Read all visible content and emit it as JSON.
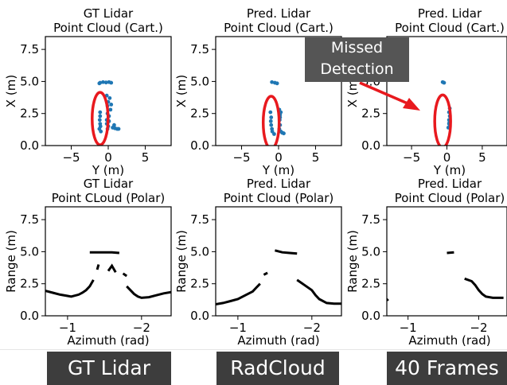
{
  "chart_data": [
    {
      "type": "scatter",
      "title": "GT Lidar\nPoint Cloud (Cart.)",
      "xlabel": "Y (m)",
      "ylabel": "X (m)",
      "xlim": [
        -8.5,
        8.5
      ],
      "ylim": [
        0,
        8.5
      ],
      "xticks": [
        -5,
        0,
        5
      ],
      "yticks": [
        0.0,
        2.5,
        5.0,
        7.5
      ],
      "color": "#1f77b4",
      "points": [
        [
          -1.1,
          4.9
        ],
        [
          -0.7,
          4.95
        ],
        [
          -0.3,
          4.92
        ],
        [
          0.1,
          4.95
        ],
        [
          0.4,
          4.9
        ],
        [
          -1.2,
          4.85
        ],
        [
          -0.2,
          3.9
        ],
        [
          0.2,
          3.7
        ],
        [
          0.0,
          3.4
        ],
        [
          0.4,
          3.2
        ],
        [
          -0.1,
          3.1
        ],
        [
          0.3,
          2.8
        ],
        [
          -0.1,
          2.5
        ],
        [
          0.1,
          2.3
        ],
        [
          -0.2,
          2.0
        ],
        [
          0.1,
          1.9
        ],
        [
          -0.2,
          1.7
        ],
        [
          0.0,
          1.5
        ],
        [
          -0.1,
          1.3
        ],
        [
          0.6,
          1.4
        ],
        [
          0.9,
          1.35
        ],
        [
          1.2,
          1.3
        ],
        [
          1.4,
          1.3
        ],
        [
          0.8,
          1.6
        ],
        [
          -1.1,
          2.6
        ],
        [
          -1.1,
          2.3
        ],
        [
          -1.15,
          2.0
        ],
        [
          -1.1,
          1.7
        ],
        [
          -1.05,
          1.5
        ],
        [
          -1.2,
          1.3
        ],
        [
          -1.0,
          1.1
        ]
      ],
      "highlight": {
        "shape": "ellipse",
        "center": [
          -1.1,
          2.1
        ],
        "color": "#e8191e"
      }
    },
    {
      "type": "scatter",
      "title": "Pred. Lidar\nPoint Cloud (Cart.)",
      "xlabel": "Y (m)",
      "ylabel": "X (m)",
      "xlim": [
        -8.5,
        8.5
      ],
      "ylim": [
        0,
        8.5
      ],
      "xticks": [
        -5,
        0,
        5
      ],
      "yticks": [
        0.0,
        2.5,
        5.0,
        7.5
      ],
      "color": "#1f77b4",
      "points": [
        [
          -0.9,
          4.95
        ],
        [
          -0.5,
          4.9
        ],
        [
          -0.2,
          4.85
        ],
        [
          0.1,
          2.8
        ],
        [
          0.2,
          2.4
        ],
        [
          0.15,
          2.0
        ],
        [
          0.2,
          1.6
        ],
        [
          0.1,
          1.3
        ],
        [
          0.3,
          1.1
        ],
        [
          0.5,
          1.0
        ],
        [
          0.7,
          0.95
        ],
        [
          0.3,
          2.6
        ],
        [
          0.2,
          2.2
        ],
        [
          -1.1,
          2.6
        ],
        [
          -1.0,
          2.2
        ],
        [
          -1.05,
          1.9
        ],
        [
          -1.0,
          1.6
        ],
        [
          -0.9,
          1.3
        ],
        [
          -0.85,
          1.1
        ],
        [
          -0.6,
          0.9
        ]
      ],
      "highlight": {
        "shape": "ellipse",
        "center": [
          -1.0,
          1.8
        ],
        "color": "#e8191e"
      }
    },
    {
      "type": "scatter",
      "title": "Pred. Lidar\nPoint Cloud (Cart.)",
      "xlabel": "Y (m)",
      "ylabel": "X (m)",
      "xlim": [
        -8.5,
        8.5
      ],
      "ylim": [
        0,
        8.5
      ],
      "xticks": [
        -5,
        0,
        5
      ],
      "yticks": [
        0.0,
        2.5,
        5.0,
        7.5
      ],
      "color": "#1f77b4",
      "points": [
        [
          -0.6,
          4.95
        ],
        [
          -0.4,
          4.9
        ],
        [
          0.4,
          2.9
        ],
        [
          0.3,
          2.6
        ],
        [
          0.4,
          2.3
        ],
        [
          0.3,
          2.0
        ],
        [
          0.3,
          1.7
        ],
        [
          0.4,
          1.5
        ],
        [
          0.2,
          1.4
        ],
        [
          0.35,
          1.8
        ]
      ],
      "highlight": {
        "shape": "ellipse",
        "center": [
          -0.6,
          1.9
        ],
        "color": "#e8191e"
      }
    },
    {
      "type": "line",
      "title": "GT Lidar\nPoint CLoud (Polar)",
      "xlabel": "Azimuth (rad)",
      "ylabel": "Range (m)",
      "xlim": [
        -0.7,
        -2.4
      ],
      "ylim": [
        0,
        8.5
      ],
      "xticks": [
        -1,
        -2
      ],
      "yticks": [
        0.0,
        2.5,
        5.0,
        7.5
      ],
      "color": "#000000",
      "segments": [
        [
          [
            -0.7,
            1.95
          ],
          [
            -0.8,
            1.8
          ],
          [
            -0.9,
            1.65
          ],
          [
            -1.0,
            1.55
          ],
          [
            -1.05,
            1.5
          ],
          [
            -1.15,
            1.65
          ],
          [
            -1.2,
            1.8
          ],
          [
            -1.25,
            2.0
          ],
          [
            -1.3,
            2.3
          ],
          [
            -1.35,
            2.8
          ]
        ],
        [
          [
            -1.3,
            4.95
          ],
          [
            -1.4,
            4.95
          ],
          [
            -1.5,
            4.95
          ],
          [
            -1.6,
            4.95
          ],
          [
            -1.7,
            4.9
          ]
        ],
        [
          [
            -1.4,
            3.6
          ],
          [
            -1.42,
            4.0
          ]
        ],
        [
          [
            -1.55,
            3.5
          ],
          [
            -1.6,
            3.9
          ],
          [
            -1.65,
            3.4
          ]
        ],
        [
          [
            -1.75,
            3.3
          ],
          [
            -1.8,
            3.1
          ]
        ],
        [
          [
            -1.8,
            2.3
          ],
          [
            -1.85,
            2.0
          ],
          [
            -1.9,
            1.7
          ],
          [
            -1.95,
            1.5
          ],
          [
            -2.0,
            1.4
          ],
          [
            -2.1,
            1.45
          ],
          [
            -2.2,
            1.6
          ],
          [
            -2.3,
            1.75
          ],
          [
            -2.4,
            1.85
          ]
        ]
      ]
    },
    {
      "type": "line",
      "title": "Pred. Lidar\nPoint Cloud (Polar)",
      "xlabel": "Azimuth (rad)",
      "ylabel": "Range (m)",
      "xlim": [
        -0.7,
        -2.4
      ],
      "ylim": [
        0,
        8.5
      ],
      "xticks": [
        -1,
        -2
      ],
      "yticks": [
        0.0,
        2.5,
        5.0,
        7.5
      ],
      "color": "#000000",
      "segments": [
        [
          [
            -0.7,
            0.9
          ],
          [
            -0.8,
            1.0
          ],
          [
            -0.9,
            1.15
          ],
          [
            -1.0,
            1.3
          ],
          [
            -1.1,
            1.6
          ],
          [
            -1.2,
            1.9
          ],
          [
            -1.25,
            2.2
          ],
          [
            -1.3,
            2.5
          ]
        ],
        [
          [
            -1.35,
            3.2
          ],
          [
            -1.4,
            3.35
          ]
        ],
        [
          [
            -1.5,
            5.1
          ],
          [
            -1.6,
            4.95
          ],
          [
            -1.7,
            4.9
          ],
          [
            -1.8,
            4.85
          ]
        ],
        [
          [
            -1.8,
            2.8
          ],
          [
            -1.9,
            2.4
          ],
          [
            -2.0,
            2.0
          ],
          [
            -2.05,
            1.6
          ],
          [
            -2.1,
            1.3
          ],
          [
            -2.2,
            1.0
          ],
          [
            -2.3,
            0.95
          ],
          [
            -2.4,
            0.95
          ]
        ]
      ]
    },
    {
      "type": "line",
      "title": "Pred. Lidar\nPoint Cloud (Polar)",
      "xlabel": "Azimuth (rad)",
      "ylabel": "Range (m)",
      "xlim": [
        -0.7,
        -2.4
      ],
      "ylim": [
        0,
        8.5
      ],
      "xticks": [
        -1,
        -2
      ],
      "yticks": [
        0.0,
        2.5,
        5.0,
        7.5
      ],
      "color": "#000000",
      "segments": [
        [
          [
            -0.7,
            1.2
          ],
          [
            -0.72,
            1.3
          ]
        ],
        [
          [
            -1.55,
            4.9
          ],
          [
            -1.65,
            4.95
          ]
        ],
        [
          [
            -1.8,
            2.9
          ],
          [
            -1.9,
            2.7
          ],
          [
            -1.95,
            2.4
          ],
          [
            -2.0,
            2.0
          ],
          [
            -2.05,
            1.7
          ],
          [
            -2.1,
            1.5
          ],
          [
            -2.2,
            1.4
          ],
          [
            -2.35,
            1.4
          ]
        ]
      ]
    }
  ],
  "annotation": {
    "line1": "Missed",
    "line2": "Detection",
    "arrow_color": "#e8191e"
  },
  "captions": [
    "GT Lidar",
    "RadCloud",
    "40 Frames"
  ]
}
